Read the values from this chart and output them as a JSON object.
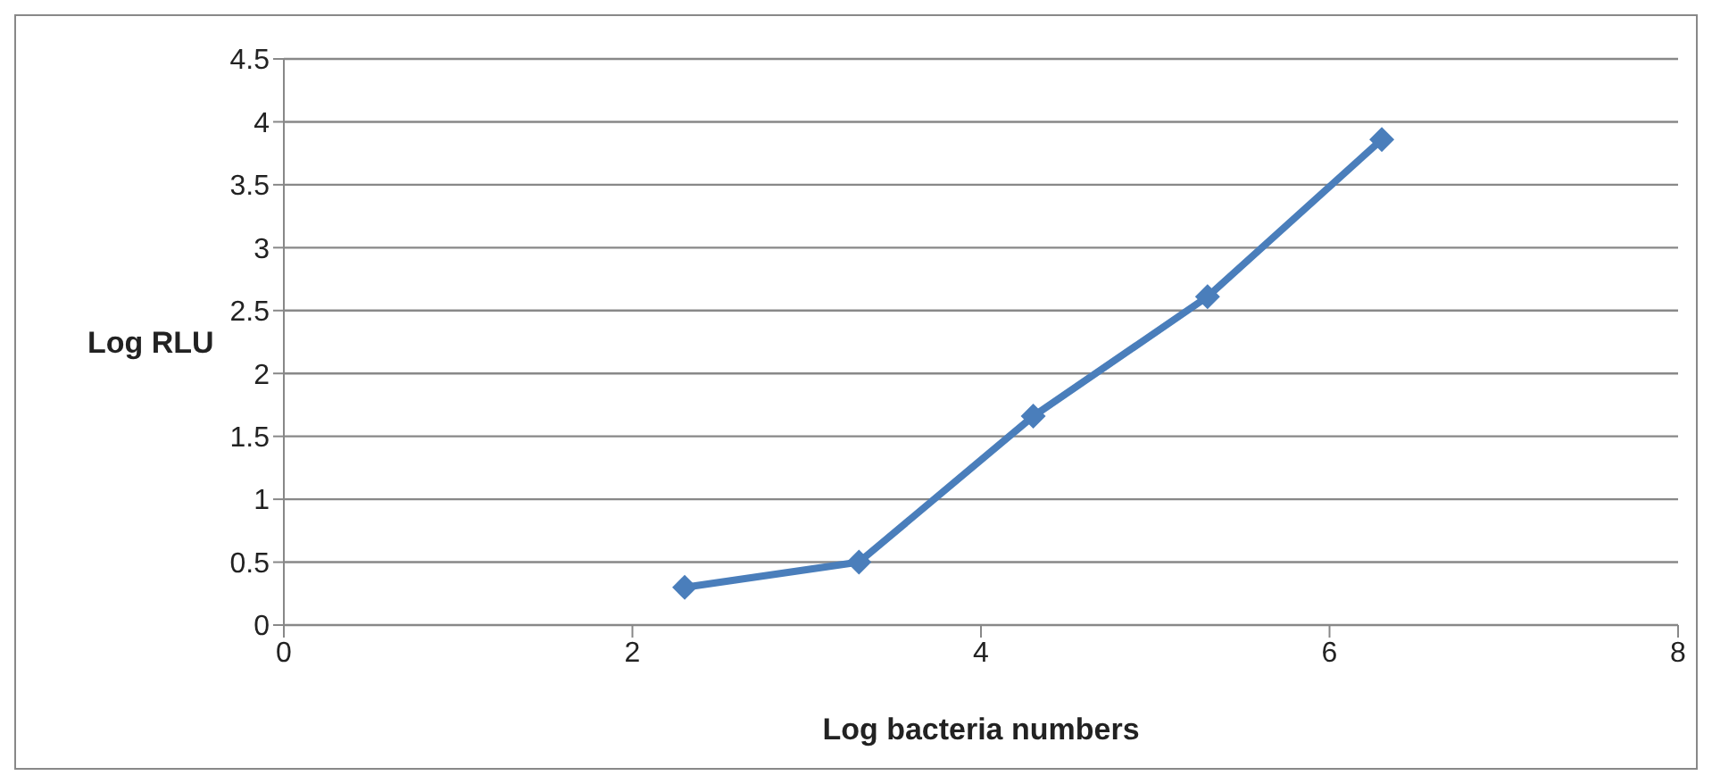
{
  "chart_data": {
    "type": "line",
    "xlabel": "Log bacteria numbers",
    "ylabel": "Log RLU",
    "x": [
      2.3,
      3.3,
      4.3,
      5.3,
      6.3
    ],
    "series": [
      {
        "color": "#4a7ebb",
        "values": [
          0.3,
          0.5,
          1.66,
          2.61,
          3.86
        ]
      }
    ],
    "xlim": [
      0,
      8
    ],
    "xticks": [
      0,
      2,
      4,
      6,
      8
    ],
    "ylim": [
      0,
      4.5
    ],
    "yticks": [
      0,
      0.5,
      1,
      1.5,
      2,
      2.5,
      3,
      3.5,
      4,
      4.5
    ],
    "grid": "y",
    "marker": "diamond",
    "line_style": "solid"
  }
}
